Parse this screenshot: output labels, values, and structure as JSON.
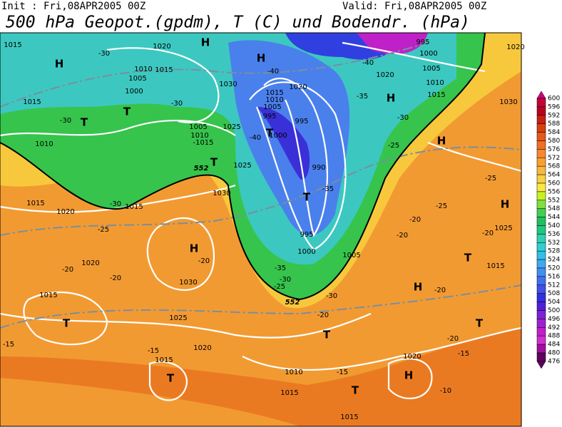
{
  "header": {
    "init": "Init : Fri,08APR2005 00Z",
    "valid": "Valid: Fri,08APR2005 00Z",
    "title": "500 hPa Geopot.(gpdm), T (C) und Bodendr. (hPa)"
  },
  "legend": {
    "ticks": [
      600,
      596,
      592,
      588,
      584,
      580,
      576,
      572,
      568,
      564,
      560,
      556,
      552,
      548,
      544,
      540,
      536,
      532,
      528,
      524,
      520,
      516,
      512,
      508,
      504,
      500,
      496,
      492,
      488,
      484,
      480,
      476
    ],
    "colors": [
      "#d0007a",
      "#c4003a",
      "#b80020",
      "#c82010",
      "#d84010",
      "#e85818",
      "#f07020",
      "#f88830",
      "#f8a030",
      "#f8b840",
      "#f8d040",
      "#f8e840",
      "#c8f020",
      "#80e040",
      "#40d050",
      "#20c060",
      "#20c880",
      "#30d0b0",
      "#30d0d0",
      "#30c0e8",
      "#40a8f0",
      "#4090f0",
      "#4070f0",
      "#4050e8",
      "#3030e0",
      "#5020d8",
      "#8020d8",
      "#a020d0",
      "#c020c8",
      "#d030d0",
      "#a010a0",
      "#600060"
    ]
  },
  "map": {
    "labels": [
      "1015",
      "H",
      "1020",
      "1010",
      "1015",
      "1005",
      "1000",
      "1015",
      "T",
      "T",
      "-30",
      "-30",
      "-30",
      "1030",
      "H",
      "-40",
      "1015",
      "1010",
      "1005",
      "995",
      "1020",
      "995",
      "1000",
      "-40",
      "T",
      "1005",
      "1010",
      "-1015",
      "1025",
      "1025",
      "552",
      "1010",
      "T",
      "1030",
      "1015",
      "-30",
      "1015",
      "1020",
      "-25",
      "990",
      "T",
      "-35",
      "995",
      "1000",
      "1005",
      "H",
      "1020",
      "-20",
      "-20",
      "1030",
      "-20",
      "-35",
      "-30",
      "-25",
      "552",
      "-30",
      "1015",
      "T",
      "1025",
      "-20",
      "T",
      "-15",
      "-15",
      "1020",
      "1015",
      "T",
      "1010",
      "-15",
      "T",
      "1015",
      "1015",
      "1020",
      "H",
      "-10",
      "-15",
      "-20",
      "T",
      "H",
      "-20",
      "1015",
      "T",
      "-20",
      "1025",
      "H",
      "-20",
      "-20",
      "-25",
      "-25",
      "1030",
      "H",
      "-25",
      "-30",
      "H",
      "1015",
      "-35",
      "1010",
      "1005",
      "1020",
      "-40",
      "1000",
      "995",
      "H",
      "1020"
    ]
  }
}
